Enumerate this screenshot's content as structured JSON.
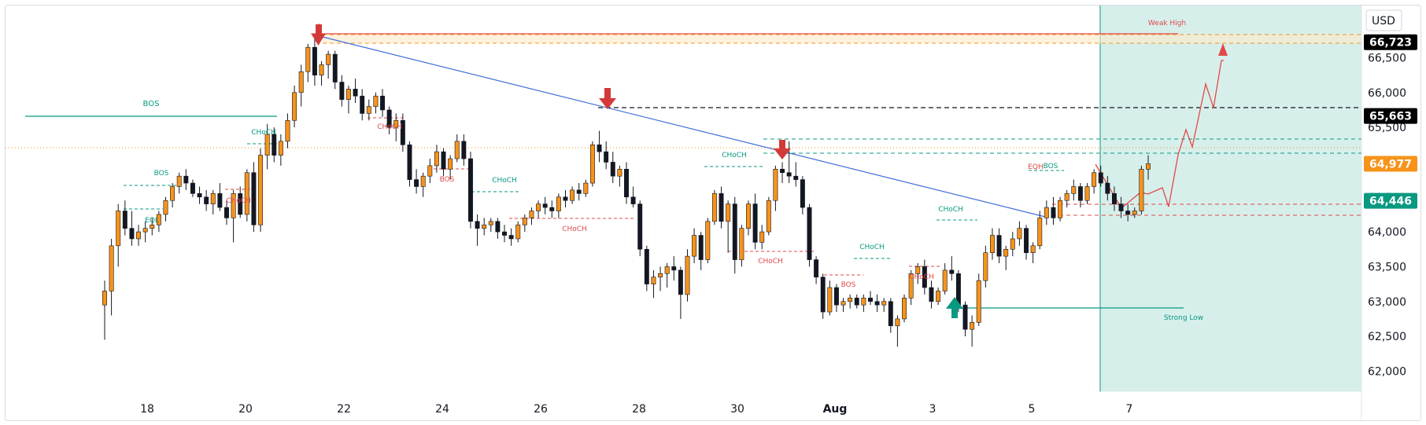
{
  "currency_label": "USD",
  "chart_data": {
    "type": "candlestick",
    "ylim": [
      61700,
      67250
    ],
    "y_ticks": [
      62000,
      62500,
      63000,
      63500,
      64000,
      64500,
      65000,
      65500,
      66000,
      66500
    ],
    "x_ticks": [
      "18",
      "20",
      "22",
      "24",
      "26",
      "28",
      "30",
      "Aug",
      "3",
      "5",
      "7"
    ],
    "price_badges": [
      {
        "value": 66723,
        "label": "66,723",
        "color": "#000000"
      },
      {
        "value": 65663,
        "label": "65,663",
        "color": "#000000"
      },
      {
        "value": 64977,
        "label": "64,977",
        "color": "#f7931a"
      },
      {
        "value": 64446,
        "label": "64,446",
        "color": "#089981"
      }
    ],
    "annotations": [
      {
        "text": "Weak High",
        "color": "#e24848"
      },
      {
        "text": "Strong Low",
        "color": "#089981"
      },
      {
        "text": "BOS",
        "color": "#089981"
      },
      {
        "text": "CHoCH",
        "color": "#089981"
      },
      {
        "text": "BOS",
        "color": "#089981"
      },
      {
        "text": "EQL",
        "color": "#089981"
      },
      {
        "text": "CHoCH",
        "color": "#e24848"
      },
      {
        "text": "CHoCH",
        "color": "#e24848"
      },
      {
        "text": "BOS",
        "color": "#e24848"
      },
      {
        "text": "CHoCH",
        "color": "#089981"
      },
      {
        "text": "CHoCH",
        "color": "#e24848"
      },
      {
        "text": "CHoCH",
        "color": "#089981"
      },
      {
        "text": "CHoCH",
        "color": "#e24848"
      },
      {
        "text": "BOS",
        "color": "#e24848"
      },
      {
        "text": "CHoCH",
        "color": "#089981"
      },
      {
        "text": "CHoCH",
        "color": "#e24848"
      },
      {
        "text": "CHoCH",
        "color": "#089981"
      },
      {
        "text": "EQH",
        "color": "#e24848"
      },
      {
        "text": "BOS",
        "color": "#089981"
      }
    ],
    "ohlc": [
      [
        62950,
        63300,
        62450,
        63150
      ],
      [
        63150,
        63900,
        62800,
        63800
      ],
      [
        63800,
        64400,
        63500,
        64300
      ],
      [
        64300,
        64450,
        63950,
        64050
      ],
      [
        64050,
        64300,
        63800,
        63900
      ],
      [
        63900,
        64100,
        63800,
        64000
      ],
      [
        64000,
        64150,
        63850,
        64050
      ],
      [
        64050,
        64200,
        63950,
        64100
      ],
      [
        64100,
        64300,
        64000,
        64250
      ],
      [
        64250,
        64500,
        64150,
        64450
      ],
      [
        64450,
        64700,
        64350,
        64650
      ],
      [
        64650,
        64850,
        64550,
        64800
      ],
      [
        64800,
        64900,
        64600,
        64700
      ],
      [
        64700,
        64750,
        64500,
        64550
      ],
      [
        64550,
        64650,
        64400,
        64500
      ],
      [
        64500,
        64600,
        64300,
        64400
      ],
      [
        64400,
        64600,
        64250,
        64550
      ],
      [
        64550,
        64700,
        64300,
        64350
      ],
      [
        64350,
        64450,
        64100,
        64200
      ],
      [
        64200,
        64600,
        63850,
        64550
      ],
      [
        64550,
        64650,
        64200,
        64250
      ],
      [
        64250,
        64900,
        64150,
        64850
      ],
      [
        64850,
        65000,
        64000,
        64100
      ],
      [
        64100,
        65200,
        64000,
        65100
      ],
      [
        65100,
        65550,
        64900,
        65400
      ],
      [
        65400,
        65500,
        65000,
        65100
      ],
      [
        65100,
        65400,
        64950,
        65300
      ],
      [
        65300,
        65700,
        65200,
        65600
      ],
      [
        65600,
        66100,
        65500,
        66000
      ],
      [
        66000,
        66400,
        65800,
        66300
      ],
      [
        66300,
        66700,
        66150,
        66650
      ],
      [
        66650,
        66800,
        66100,
        66250
      ],
      [
        66250,
        66450,
        66100,
        66400
      ],
      [
        66400,
        66600,
        66200,
        66550
      ],
      [
        66550,
        66600,
        66050,
        66150
      ],
      [
        66150,
        66250,
        65800,
        65900
      ],
      [
        65900,
        66100,
        65700,
        66050
      ],
      [
        66050,
        66200,
        65850,
        65950
      ],
      [
        65950,
        66050,
        65600,
        65700
      ],
      [
        65700,
        65900,
        65600,
        65800
      ],
      [
        65800,
        66000,
        65700,
        65950
      ],
      [
        65950,
        66050,
        65650,
        65750
      ],
      [
        65750,
        65800,
        65400,
        65500
      ],
      [
        65500,
        65700,
        65300,
        65600
      ],
      [
        65600,
        65700,
        65150,
        65250
      ],
      [
        65250,
        65300,
        64650,
        64750
      ],
      [
        64750,
        64900,
        64550,
        64650
      ],
      [
        64650,
        64850,
        64500,
        64800
      ],
      [
        64800,
        65050,
        64700,
        64950
      ],
      [
        64950,
        65250,
        64850,
        65150
      ],
      [
        65150,
        65200,
        64800,
        64900
      ],
      [
        64900,
        65100,
        64750,
        65050
      ],
      [
        65050,
        65400,
        65000,
        65300
      ],
      [
        65300,
        65400,
        64950,
        65050
      ],
      [
        65050,
        65150,
        64050,
        64150
      ],
      [
        64150,
        64250,
        63800,
        64050
      ],
      [
        64050,
        64200,
        63950,
        64100
      ],
      [
        64100,
        64200,
        64000,
        64150
      ],
      [
        64150,
        64200,
        63900,
        64000
      ],
      [
        64000,
        64100,
        63850,
        63950
      ],
      [
        63950,
        64050,
        63800,
        63900
      ],
      [
        63900,
        64150,
        63850,
        64100
      ],
      [
        64100,
        64250,
        64000,
        64200
      ],
      [
        64200,
        64350,
        64100,
        64300
      ],
      [
        64300,
        64450,
        64200,
        64400
      ],
      [
        64400,
        64500,
        64250,
        64350
      ],
      [
        64350,
        64450,
        64200,
        64300
      ],
      [
        64300,
        64550,
        64200,
        64500
      ],
      [
        64500,
        64600,
        64350,
        64450
      ],
      [
        64450,
        64650,
        64400,
        64600
      ],
      [
        64600,
        64700,
        64450,
        64550
      ],
      [
        64550,
        64750,
        64500,
        64700
      ],
      [
        64700,
        65300,
        64650,
        65250
      ],
      [
        65250,
        65450,
        65000,
        65150
      ],
      [
        65150,
        65300,
        64900,
        65000
      ],
      [
        65000,
        65150,
        64700,
        64800
      ],
      [
        64800,
        64950,
        64650,
        64900
      ],
      [
        64900,
        65000,
        64400,
        64500
      ],
      [
        64500,
        64650,
        64350,
        64400
      ],
      [
        64400,
        64450,
        63650,
        63750
      ],
      [
        63750,
        63800,
        63150,
        63250
      ],
      [
        63250,
        63450,
        63050,
        63350
      ],
      [
        63350,
        63500,
        63150,
        63400
      ],
      [
        63400,
        63550,
        63200,
        63500
      ],
      [
        63500,
        63650,
        63300,
        63450
      ],
      [
        63450,
        63500,
        62750,
        63100
      ],
      [
        63100,
        63750,
        63000,
        63650
      ],
      [
        63650,
        64050,
        63550,
        63950
      ],
      [
        63950,
        64000,
        63450,
        63600
      ],
      [
        63600,
        64200,
        63550,
        64150
      ],
      [
        64150,
        64600,
        64100,
        64550
      ],
      [
        64550,
        64650,
        64050,
        64150
      ],
      [
        64150,
        64450,
        63700,
        64400
      ],
      [
        64400,
        64500,
        63400,
        63600
      ],
      [
        63600,
        64100,
        63500,
        64050
      ],
      [
        64050,
        64450,
        63950,
        64400
      ],
      [
        64400,
        64550,
        63750,
        63850
      ],
      [
        63850,
        64100,
        63750,
        64000
      ],
      [
        64000,
        64500,
        63950,
        64450
      ],
      [
        64450,
        64950,
        64300,
        64900
      ],
      [
        64900,
        65000,
        64700,
        64850
      ],
      [
        64850,
        65300,
        64700,
        64800
      ],
      [
        64800,
        65000,
        64650,
        64750
      ],
      [
        64750,
        64800,
        64250,
        64350
      ],
      [
        64350,
        64400,
        63500,
        63600
      ],
      [
        63600,
        63650,
        63250,
        63350
      ],
      [
        63350,
        63400,
        62750,
        62850
      ],
      [
        62850,
        63300,
        62800,
        63200
      ],
      [
        63200,
        63250,
        62850,
        62950
      ],
      [
        62950,
        63050,
        62850,
        63000
      ],
      [
        63000,
        63100,
        62900,
        63050
      ],
      [
        63050,
        63100,
        62900,
        62950
      ],
      [
        62950,
        63100,
        62850,
        63050
      ],
      [
        63050,
        63150,
        62950,
        63000
      ],
      [
        63000,
        63100,
        62850,
        62950
      ],
      [
        62950,
        63050,
        62850,
        63000
      ],
      [
        63000,
        63050,
        62550,
        62650
      ],
      [
        62650,
        62800,
        62350,
        62750
      ],
      [
        62750,
        63100,
        62700,
        63050
      ],
      [
        63050,
        63450,
        62950,
        63400
      ],
      [
        63400,
        63550,
        63250,
        63500
      ],
      [
        63500,
        63600,
        63100,
        63200
      ],
      [
        63200,
        63300,
        62900,
        63000
      ],
      [
        63000,
        63200,
        62950,
        63150
      ],
      [
        63150,
        63550,
        63100,
        63450
      ],
      [
        63450,
        63650,
        63300,
        63400
      ],
      [
        63400,
        63450,
        62850,
        62950
      ],
      [
        62950,
        63000,
        62500,
        62600
      ],
      [
        62600,
        62800,
        62350,
        62700
      ],
      [
        62700,
        63400,
        62650,
        63300
      ],
      [
        63300,
        63800,
        63200,
        63700
      ],
      [
        63700,
        64050,
        63600,
        63950
      ],
      [
        63950,
        64050,
        63550,
        63650
      ],
      [
        63650,
        63800,
        63450,
        63750
      ],
      [
        63750,
        64000,
        63650,
        63900
      ],
      [
        63900,
        64150,
        63800,
        64050
      ],
      [
        64050,
        64100,
        63600,
        63700
      ],
      [
        63700,
        63850,
        63550,
        63800
      ],
      [
        63800,
        64300,
        63750,
        64200
      ],
      [
        64200,
        64450,
        64100,
        64350
      ],
      [
        64350,
        64500,
        64100,
        64200
      ],
      [
        64200,
        64500,
        64150,
        64450
      ],
      [
        64450,
        64600,
        64350,
        64550
      ],
      [
        64550,
        64750,
        64450,
        64650
      ],
      [
        64650,
        64700,
        64350,
        64450
      ],
      [
        64450,
        64700,
        64400,
        64650
      ],
      [
        64650,
        64900,
        64550,
        64850
      ],
      [
        64850,
        64950,
        64650,
        64700
      ],
      [
        64700,
        64800,
        64450,
        64550
      ],
      [
        64550,
        64650,
        64300,
        64400
      ],
      [
        64400,
        64500,
        64200,
        64300
      ],
      [
        64300,
        64400,
        64150,
        64250
      ],
      [
        64250,
        64350,
        64200,
        64300
      ],
      [
        64300,
        64950,
        64250,
        64900
      ],
      [
        64900,
        65100,
        64750,
        64977
      ]
    ],
    "projection_path": [
      64950,
      64250,
      63900,
      64200,
      64100,
      64300,
      63900,
      64400,
      65100,
      64900,
      65900,
      65600,
      66600
    ]
  }
}
